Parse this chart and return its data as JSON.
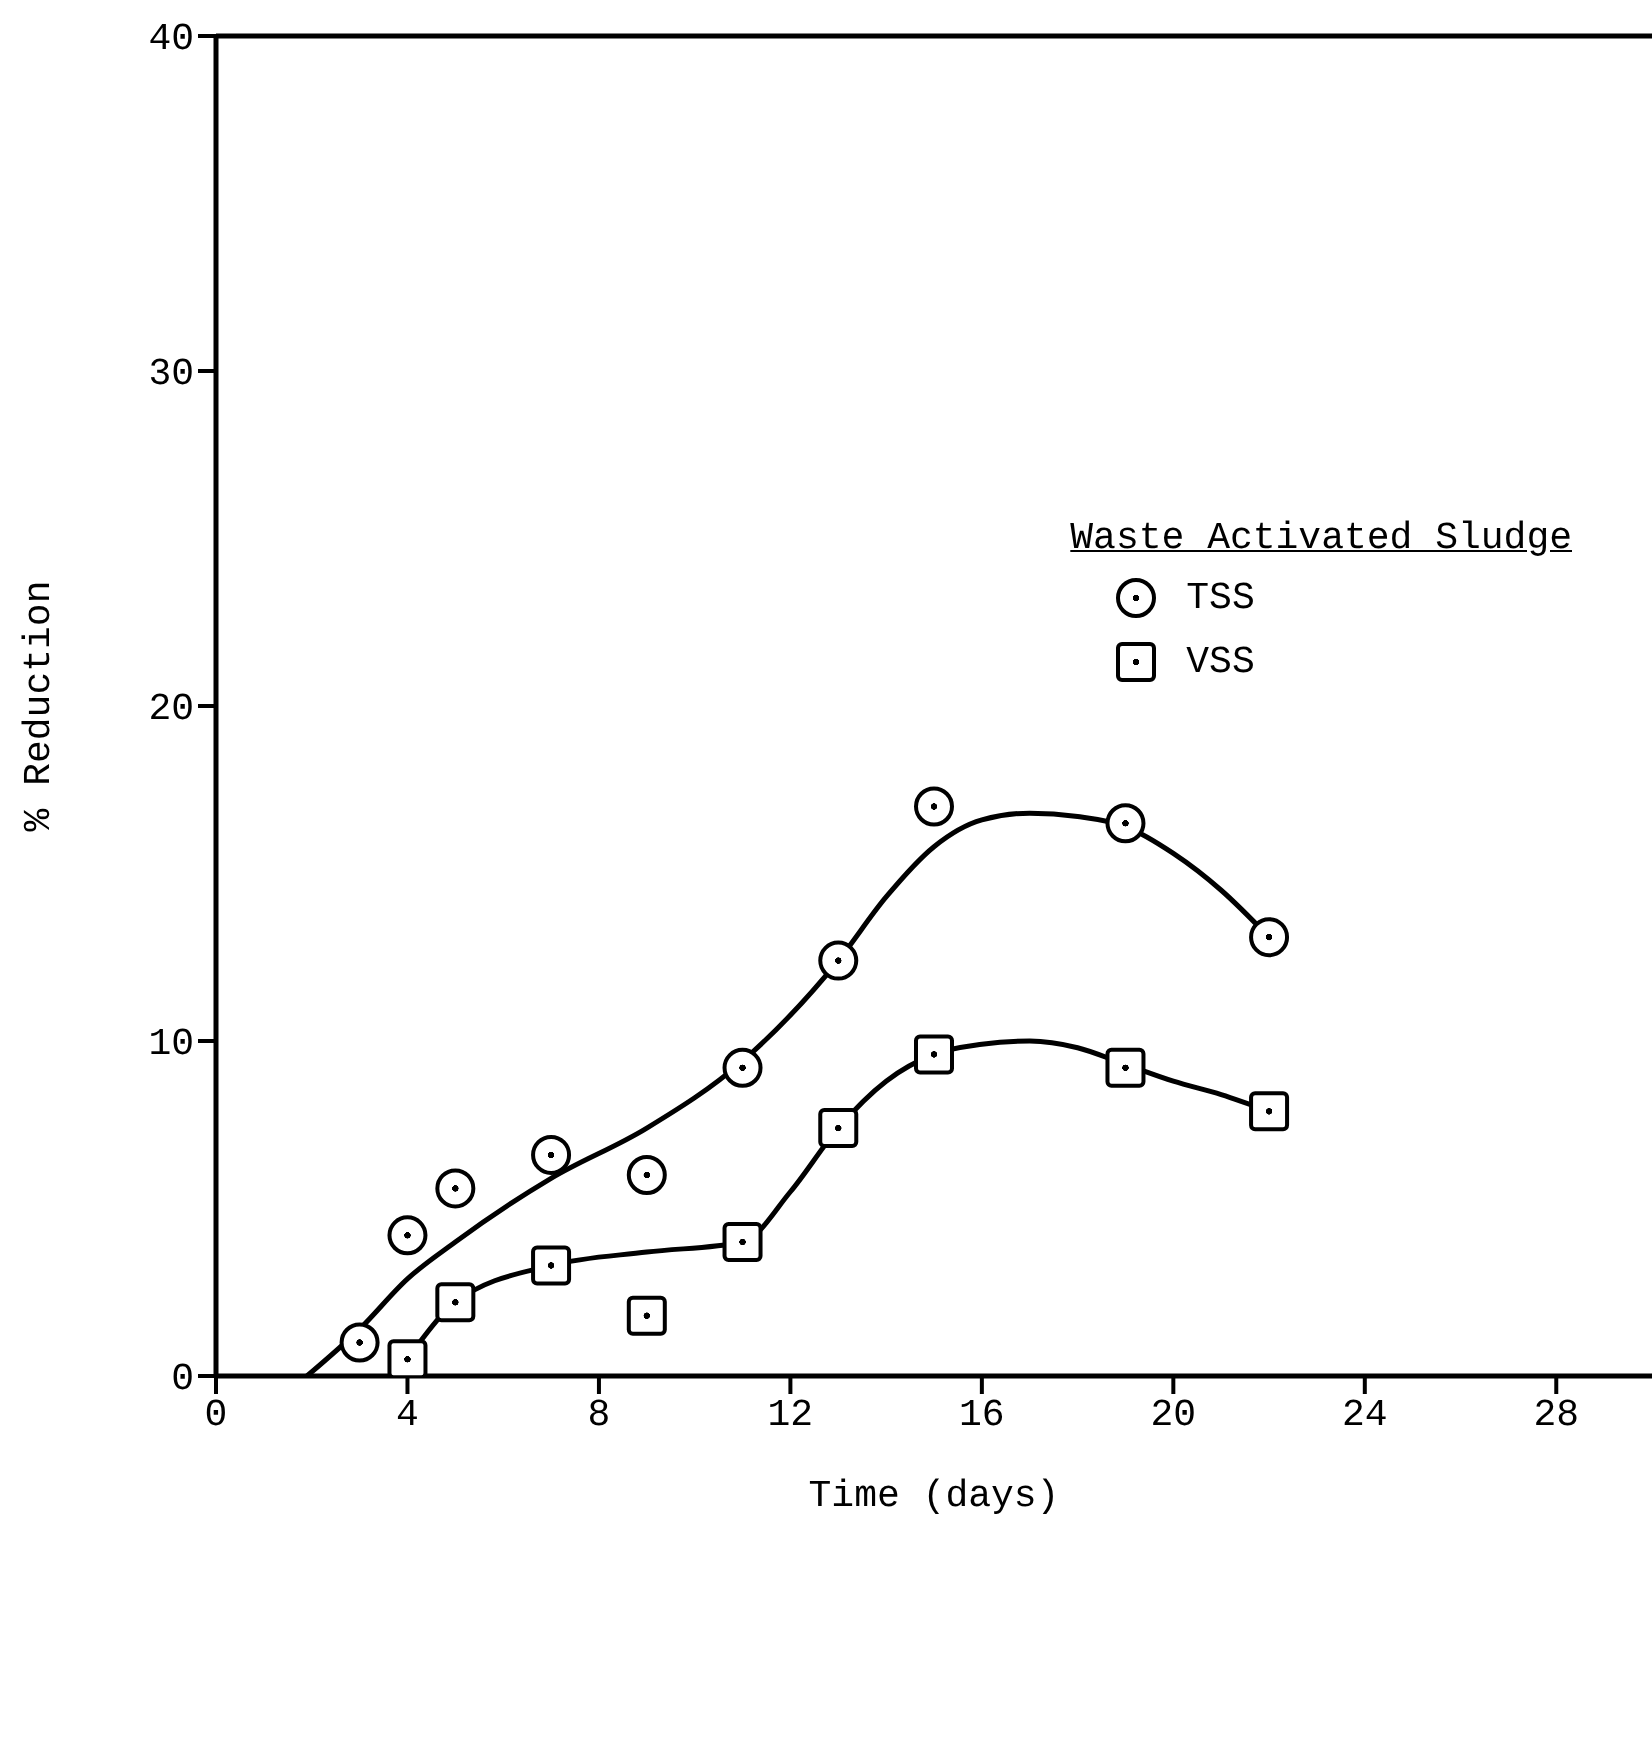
{
  "chart_data": {
    "type": "scatter",
    "xlabel": "Time    (days)",
    "ylabel": "% Reduction",
    "legend_title": "Waste Activated Sludge",
    "legend": "top right",
    "grid": false,
    "xlim": [
      0,
      30
    ],
    "xticks": [
      0,
      4,
      8,
      12,
      16,
      20,
      24,
      28
    ],
    "ylim": [
      0,
      40
    ],
    "yticks": [
      0,
      10,
      20,
      30,
      40
    ],
    "series": [
      {
        "name": "TSS",
        "color": "#000000",
        "marker": "circle",
        "x": [
          3,
          4,
          5,
          7,
          9,
          11,
          13,
          15,
          19,
          22
        ],
        "values": [
          1.0,
          4.2,
          5.6,
          6.6,
          6.0,
          9.2,
          12.4,
          17.0,
          16.5,
          13.1
        ]
      },
      {
        "name": "VSS",
        "color": "#000000",
        "marker": "square",
        "x": [
          4,
          5,
          7,
          9,
          11,
          13,
          15,
          19,
          22
        ],
        "values": [
          0.5,
          2.2,
          3.3,
          1.8,
          4.0,
          7.4,
          9.6,
          9.2,
          7.9
        ]
      },
      {
        "type": "line",
        "color": "#000000",
        "x": [
          1.9,
          3,
          4,
          5,
          7,
          9,
          11,
          13,
          14,
          15,
          16,
          17,
          18,
          19,
          20,
          21,
          22
        ],
        "values": [
          0,
          1.4,
          2.9,
          4.0,
          5.9,
          7.4,
          9.4,
          12.4,
          14.3,
          15.8,
          16.6,
          16.8,
          16.7,
          16.4,
          15.6,
          14.5,
          13.1
        ]
      },
      {
        "type": "line",
        "color": "#000000",
        "x": [
          4.2,
          5,
          7,
          9,
          11,
          12,
          13,
          14,
          15,
          16,
          17,
          18,
          19,
          20,
          21,
          22
        ],
        "values": [
          0.9,
          2.2,
          3.3,
          3.7,
          4.0,
          5.5,
          7.4,
          8.8,
          9.6,
          9.9,
          10.0,
          9.8,
          9.3,
          8.8,
          8.4,
          7.9
        ]
      }
    ]
  }
}
